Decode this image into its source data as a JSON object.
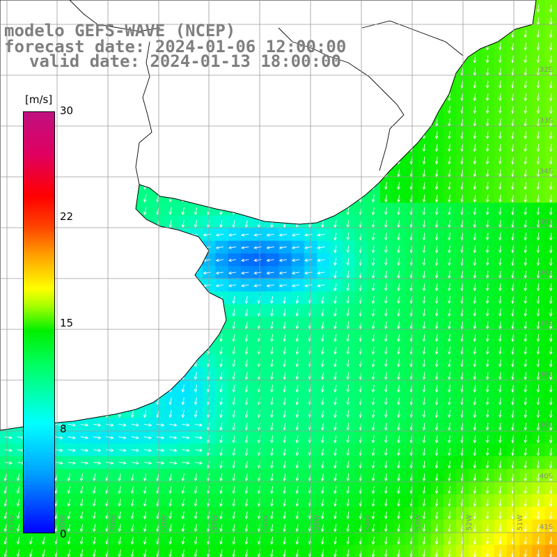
{
  "header": {
    "title": "modelo GEFS-WAVE (NCEP)",
    "forecast": "forecast date: 2024-01-06 12:00:00",
    "valid": "valid date: 2024-01-13 18:00:00"
  },
  "colorbar": {
    "unit": "[m/s]",
    "ticks": [
      "30",
      "22",
      "15",
      "8",
      "0"
    ],
    "tick_values": [
      30,
      22,
      15,
      8,
      0
    ],
    "colors": [
      "#0000ff",
      "#00a0ff",
      "#00ffff",
      "#00ff60",
      "#00f000",
      "#aaff00",
      "#ffff00",
      "#ffa000",
      "#ff4000",
      "#ff0000",
      "#c01080"
    ]
  },
  "grid": {
    "lat_labels": [
      "32S",
      "33S",
      "34S",
      "35S",
      "36S",
      "37S",
      "38S",
      "39S",
      "40S",
      "41S"
    ],
    "lon_labels": [
      "61W",
      "60W",
      "59W",
      "58W",
      "57W",
      "56W",
      "55W",
      "54W",
      "53W",
      "52W",
      "51W"
    ]
  },
  "field": {
    "description_colors": {
      "land": "#ffffff",
      "coast": "#000000",
      "grid": "#9a9a9a",
      "arrow": "#ffffff"
    }
  }
}
